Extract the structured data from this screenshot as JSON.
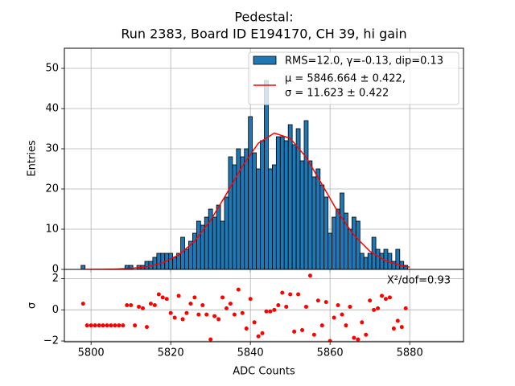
{
  "chart_data": [
    {
      "type": "histogram",
      "title": [
        "Pedestal:",
        "Run 2383, Board ID E194170, CH 39, hi gain"
      ],
      "ylabel": "Entries",
      "name": "RMS=12.0, γ=-0.13, dip=0.13",
      "color": "#1f77b4",
      "bins": [
        5797.5,
        5798.5,
        5799.5,
        5800.5,
        5801.5,
        5802.5,
        5803.5,
        5804.5,
        5805.5,
        5806.5,
        5807.5,
        5808.5,
        5809.5,
        5810.5,
        5811.5,
        5812.5,
        5813.5,
        5814.5,
        5815.5,
        5816.5,
        5817.5,
        5818.5,
        5819.5,
        5820.5,
        5821.5,
        5822.5,
        5823.5,
        5824.5,
        5825.5,
        5826.5,
        5827.5,
        5828.5,
        5829.5,
        5830.5,
        5831.5,
        5832.5,
        5833.5,
        5834.5,
        5835.5,
        5836.5,
        5837.5,
        5838.5,
        5839.5,
        5840.5,
        5841.5,
        5842.5,
        5843.5,
        5844.5,
        5845.5,
        5846.5,
        5847.5,
        5848.5,
        5849.5,
        5850.5,
        5851.5,
        5852.5,
        5853.5,
        5854.5,
        5855.5,
        5856.5,
        5857.5,
        5858.5,
        5859.5,
        5860.5,
        5861.5,
        5862.5,
        5863.5,
        5864.5,
        5865.5,
        5866.5,
        5867.5,
        5868.5,
        5869.5,
        5870.5,
        5871.5,
        5872.5,
        5873.5,
        5874.5,
        5875.5,
        5876.5,
        5877.5,
        5878.5,
        5879.5
      ],
      "values": [
        1,
        0,
        0,
        0,
        0,
        0,
        0,
        0,
        0,
        0,
        0,
        1,
        1,
        0,
        1,
        1,
        2,
        2,
        3,
        4,
        4,
        4,
        4,
        3,
        4,
        8,
        5,
        7,
        9,
        12,
        11,
        13,
        15,
        13,
        16,
        12,
        18,
        28,
        26,
        30,
        28,
        30,
        38,
        29,
        25,
        32,
        47,
        25,
        26,
        33,
        33,
        32,
        36,
        31,
        35,
        27,
        37,
        27,
        23,
        25,
        21,
        18,
        9,
        13,
        15,
        19,
        14,
        10,
        13,
        12,
        4,
        3,
        4,
        8,
        5,
        4,
        5,
        4,
        2,
        5,
        2,
        1
      ],
      "fit": {
        "name": [
          "μ = 5846.664 ± 0.422,",
          "σ = 11.623 ± 0.422"
        ],
        "color": "#ff0000",
        "x": [
          5798,
          5802,
          5806,
          5810,
          5814,
          5818,
          5822,
          5826,
          5830,
          5834,
          5838,
          5842,
          5846,
          5850,
          5854,
          5858,
          5862,
          5866,
          5870,
          5874,
          5878,
          5880
        ],
        "values": [
          0.005,
          0.02,
          0.07,
          0.24,
          0.66,
          1.63,
          3.58,
          7.0,
          12.2,
          18.8,
          25.7,
          31.4,
          33.9,
          32.6,
          27.9,
          21.1,
          14.2,
          8.5,
          4.5,
          2.14,
          0.9,
          0.56
        ]
      },
      "xlim": [
        5793.3,
        5893.5
      ],
      "xticks": [
        5800,
        5820,
        5840,
        5860,
        5880
      ],
      "ylim": [
        0,
        55
      ],
      "yticks": [
        0,
        10,
        20,
        30,
        40,
        50
      ],
      "grid": true,
      "legend": "upper right"
    },
    {
      "type": "scatter",
      "xlabel": "ADC Counts",
      "ylabel": "σ",
      "annotation": "X²/dof=0.93",
      "color": "#ff0000",
      "x": [
        5798,
        5799,
        5800,
        5801,
        5802,
        5803,
        5804,
        5805,
        5806,
        5807,
        5808,
        5809,
        5810,
        5811,
        5812,
        5813,
        5814,
        5815,
        5816,
        5817,
        5818,
        5819,
        5820,
        5821,
        5822,
        5823,
        5824,
        5825,
        5826,
        5827,
        5828,
        5829,
        5830,
        5831,
        5832,
        5833,
        5834,
        5835,
        5836,
        5837,
        5838,
        5839,
        5840,
        5841,
        5842,
        5843,
        5844,
        5845,
        5846,
        5847,
        5848,
        5849,
        5850,
        5851,
        5852,
        5853,
        5854,
        5855,
        5856,
        5857,
        5858,
        5859,
        5860,
        5861,
        5862,
        5863,
        5864,
        5865,
        5866,
        5867,
        5868,
        5869,
        5870,
        5871,
        5872,
        5873,
        5874,
        5875,
        5876,
        5877,
        5878,
        5879
      ],
      "values": [
        0.4,
        -1,
        -1,
        -1,
        -1,
        -1,
        -1,
        -1,
        -1,
        -1,
        -1,
        0.3,
        0.3,
        -1,
        0.2,
        0.1,
        -1.1,
        0.4,
        0.3,
        1.0,
        0.8,
        0.7,
        -0.2,
        -0.5,
        0.9,
        -0.6,
        -0.2,
        0.4,
        0.8,
        -0.3,
        0.3,
        -0.3,
        -1.9,
        -0.4,
        -0.6,
        0.8,
        0.1,
        0.4,
        -0.3,
        1.3,
        -0.2,
        -1.2,
        0.7,
        -0.8,
        -1.7,
        -1.5,
        -0.1,
        -0.1,
        0.0,
        0.3,
        1.1,
        0.2,
        1.0,
        -1.4,
        1.0,
        -1.3,
        0.2,
        2.2,
        -1.6,
        0.6,
        -1.0,
        0.5,
        -2.0,
        -0.5,
        0.3,
        -0.3,
        -1.0,
        0.2,
        -1.8,
        -1.9,
        -0.8,
        -1.6,
        0.6,
        0.0,
        0.1,
        0.9,
        0.7,
        0.8,
        -1.2,
        -0.7,
        -1.1,
        0.1
      ],
      "xlim": [
        5793.3,
        5893.5
      ],
      "xticks": [
        5800,
        5820,
        5840,
        5860,
        5880
      ],
      "ylim": [
        -2.05,
        2.6
      ],
      "yticks": [
        {
          "value": -2,
          "label": "−2"
        },
        0,
        2
      ],
      "grid": true
    }
  ]
}
